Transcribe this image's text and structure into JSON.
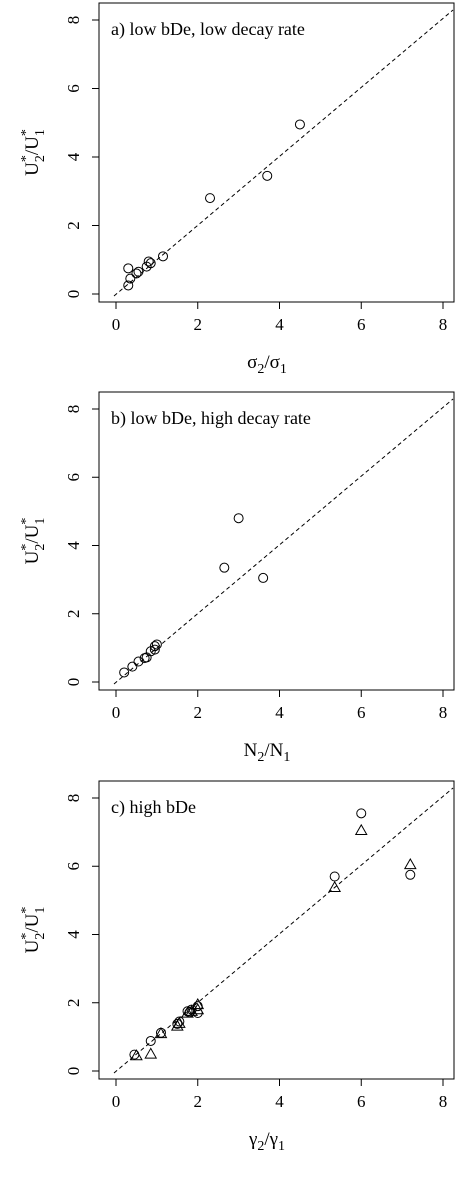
{
  "chart_data": [
    {
      "type": "scatter",
      "title": "a) low bDe, low decay rate",
      "xlabel": {
        "base": "σ",
        "parts": [
          [
            "2",
            "/σ"
          ],
          [
            "1",
            ""
          ]
        ]
      },
      "ylabel": {
        "main": "U",
        "sup": "*",
        "sub": "2",
        "rest": "/U",
        "sup2": "*",
        "sub2": "1"
      },
      "xlim": [
        0,
        8
      ],
      "ylim": [
        0,
        8
      ],
      "xticks": [
        "0",
        "2",
        "4",
        "6",
        "8"
      ],
      "yticks": [
        "0",
        "2",
        "4",
        "6",
        "8"
      ],
      "reference_line": "y = x (dashed)",
      "series": [
        {
          "marker": "circle",
          "points": [
            [
              0.3,
              0.75
            ],
            [
              0.35,
              0.45
            ],
            [
              0.3,
              0.25
            ],
            [
              0.5,
              0.6
            ],
            [
              0.55,
              0.65
            ],
            [
              0.75,
              0.8
            ],
            [
              0.8,
              0.95
            ],
            [
              0.85,
              0.9
            ],
            [
              1.15,
              1.1
            ],
            [
              2.3,
              2.8
            ],
            [
              3.7,
              3.45
            ],
            [
              4.5,
              4.95
            ]
          ]
        }
      ]
    },
    {
      "type": "scatter",
      "title": "b) low bDe, high decay rate",
      "xlabel": {
        "base": "N",
        "parts": [
          [
            "2",
            "/N"
          ],
          [
            "1",
            ""
          ]
        ]
      },
      "ylabel": {
        "main": "U",
        "sup": "*",
        "sub": "2",
        "rest": "/U",
        "sup2": "*",
        "sub2": "1"
      },
      "xlim": [
        0,
        8
      ],
      "ylim": [
        0,
        8
      ],
      "xticks": [
        "0",
        "2",
        "4",
        "6",
        "8"
      ],
      "yticks": [
        "0",
        "2",
        "4",
        "6",
        "8"
      ],
      "reference_line": "y = x (dashed)",
      "series": [
        {
          "marker": "circle",
          "points": [
            [
              0.2,
              0.28
            ],
            [
              0.4,
              0.45
            ],
            [
              0.55,
              0.6
            ],
            [
              0.7,
              0.7
            ],
            [
              0.75,
              0.72
            ],
            [
              0.85,
              0.9
            ],
            [
              0.95,
              1.05
            ],
            [
              1.0,
              1.1
            ],
            [
              0.95,
              0.95
            ],
            [
              2.65,
              3.35
            ],
            [
              3.0,
              4.8
            ],
            [
              3.6,
              3.05
            ]
          ]
        }
      ]
    },
    {
      "type": "scatter",
      "title": "c) high bDe",
      "xlabel": {
        "base": "γ",
        "parts": [
          [
            "2",
            "/γ"
          ],
          [
            "1",
            ""
          ]
        ]
      },
      "ylabel": {
        "main": "U",
        "sup": "*",
        "sub": "2",
        "rest": "/U",
        "sup2": "*",
        "sub2": "1"
      },
      "xlim": [
        0,
        8
      ],
      "ylim": [
        0,
        8
      ],
      "xticks": [
        "0",
        "2",
        "4",
        "6",
        "8"
      ],
      "yticks": [
        "0",
        "2",
        "4",
        "6",
        "8"
      ],
      "reference_line": "y = x (dashed)",
      "series": [
        {
          "marker": "circle",
          "points": [
            [
              0.45,
              0.48
            ],
            [
              0.85,
              0.88
            ],
            [
              1.1,
              1.12
            ],
            [
              1.5,
              1.38
            ],
            [
              1.55,
              1.45
            ],
            [
              1.75,
              1.75
            ],
            [
              1.8,
              1.72
            ],
            [
              1.85,
              1.8
            ],
            [
              2.0,
              1.7
            ],
            [
              2.0,
              1.9
            ],
            [
              5.35,
              5.7
            ],
            [
              6.0,
              7.55
            ],
            [
              7.2,
              5.75
            ]
          ]
        },
        {
          "marker": "triangle",
          "points": [
            [
              0.5,
              0.45
            ],
            [
              0.85,
              0.5
            ],
            [
              1.1,
              1.1
            ],
            [
              1.5,
              1.32
            ],
            [
              1.55,
              1.4
            ],
            [
              1.75,
              1.7
            ],
            [
              1.85,
              1.75
            ],
            [
              2.0,
              1.8
            ],
            [
              2.0,
              1.95
            ],
            [
              5.35,
              5.38
            ],
            [
              6.0,
              7.05
            ],
            [
              7.2,
              6.05
            ]
          ]
        }
      ]
    }
  ]
}
